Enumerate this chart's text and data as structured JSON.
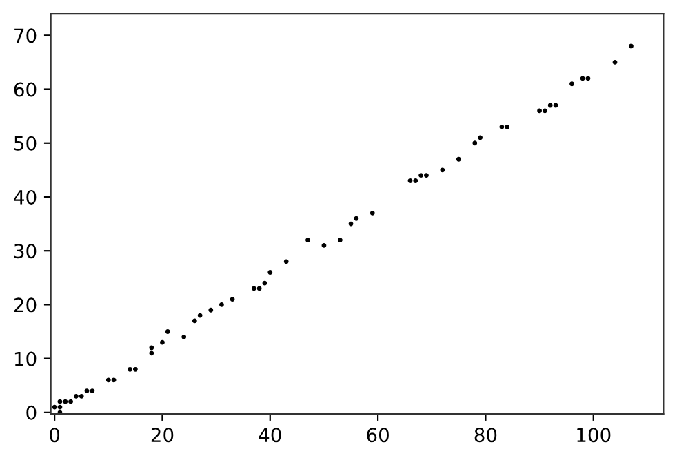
{
  "chart_data": {
    "type": "scatter",
    "color": "#000000",
    "marker": "circle",
    "grid": false,
    "legend": false,
    "x": [
      0,
      1,
      1,
      1,
      2,
      3,
      4,
      5,
      6,
      7,
      10,
      11,
      14,
      15,
      18,
      18,
      20,
      21,
      24,
      26,
      27,
      29,
      31,
      33,
      37,
      38,
      39,
      40,
      43,
      47,
      50,
      53,
      55,
      56,
      59,
      66,
      67,
      68,
      69,
      72,
      75,
      78,
      79,
      83,
      84,
      90,
      91,
      92,
      93,
      96,
      98,
      99,
      104,
      107
    ],
    "values": [
      1,
      0,
      1,
      2,
      2,
      2,
      3,
      3,
      4,
      4,
      6,
      6,
      8,
      8,
      11,
      12,
      13,
      15,
      14,
      17,
      18,
      19,
      20,
      21,
      23,
      23,
      24,
      26,
      28,
      32,
      31,
      32,
      35,
      36,
      37,
      43,
      43,
      44,
      44,
      45,
      47,
      50,
      51,
      53,
      53,
      56,
      56,
      57,
      57,
      61,
      62,
      62,
      65,
      68
    ],
    "xlim": [
      -0.7,
      113
    ],
    "ylim": [
      -0.3,
      74
    ],
    "xticks": [
      0,
      20,
      40,
      60,
      80,
      100
    ],
    "yticks": [
      0,
      10,
      20,
      30,
      40,
      50,
      60,
      70
    ]
  }
}
